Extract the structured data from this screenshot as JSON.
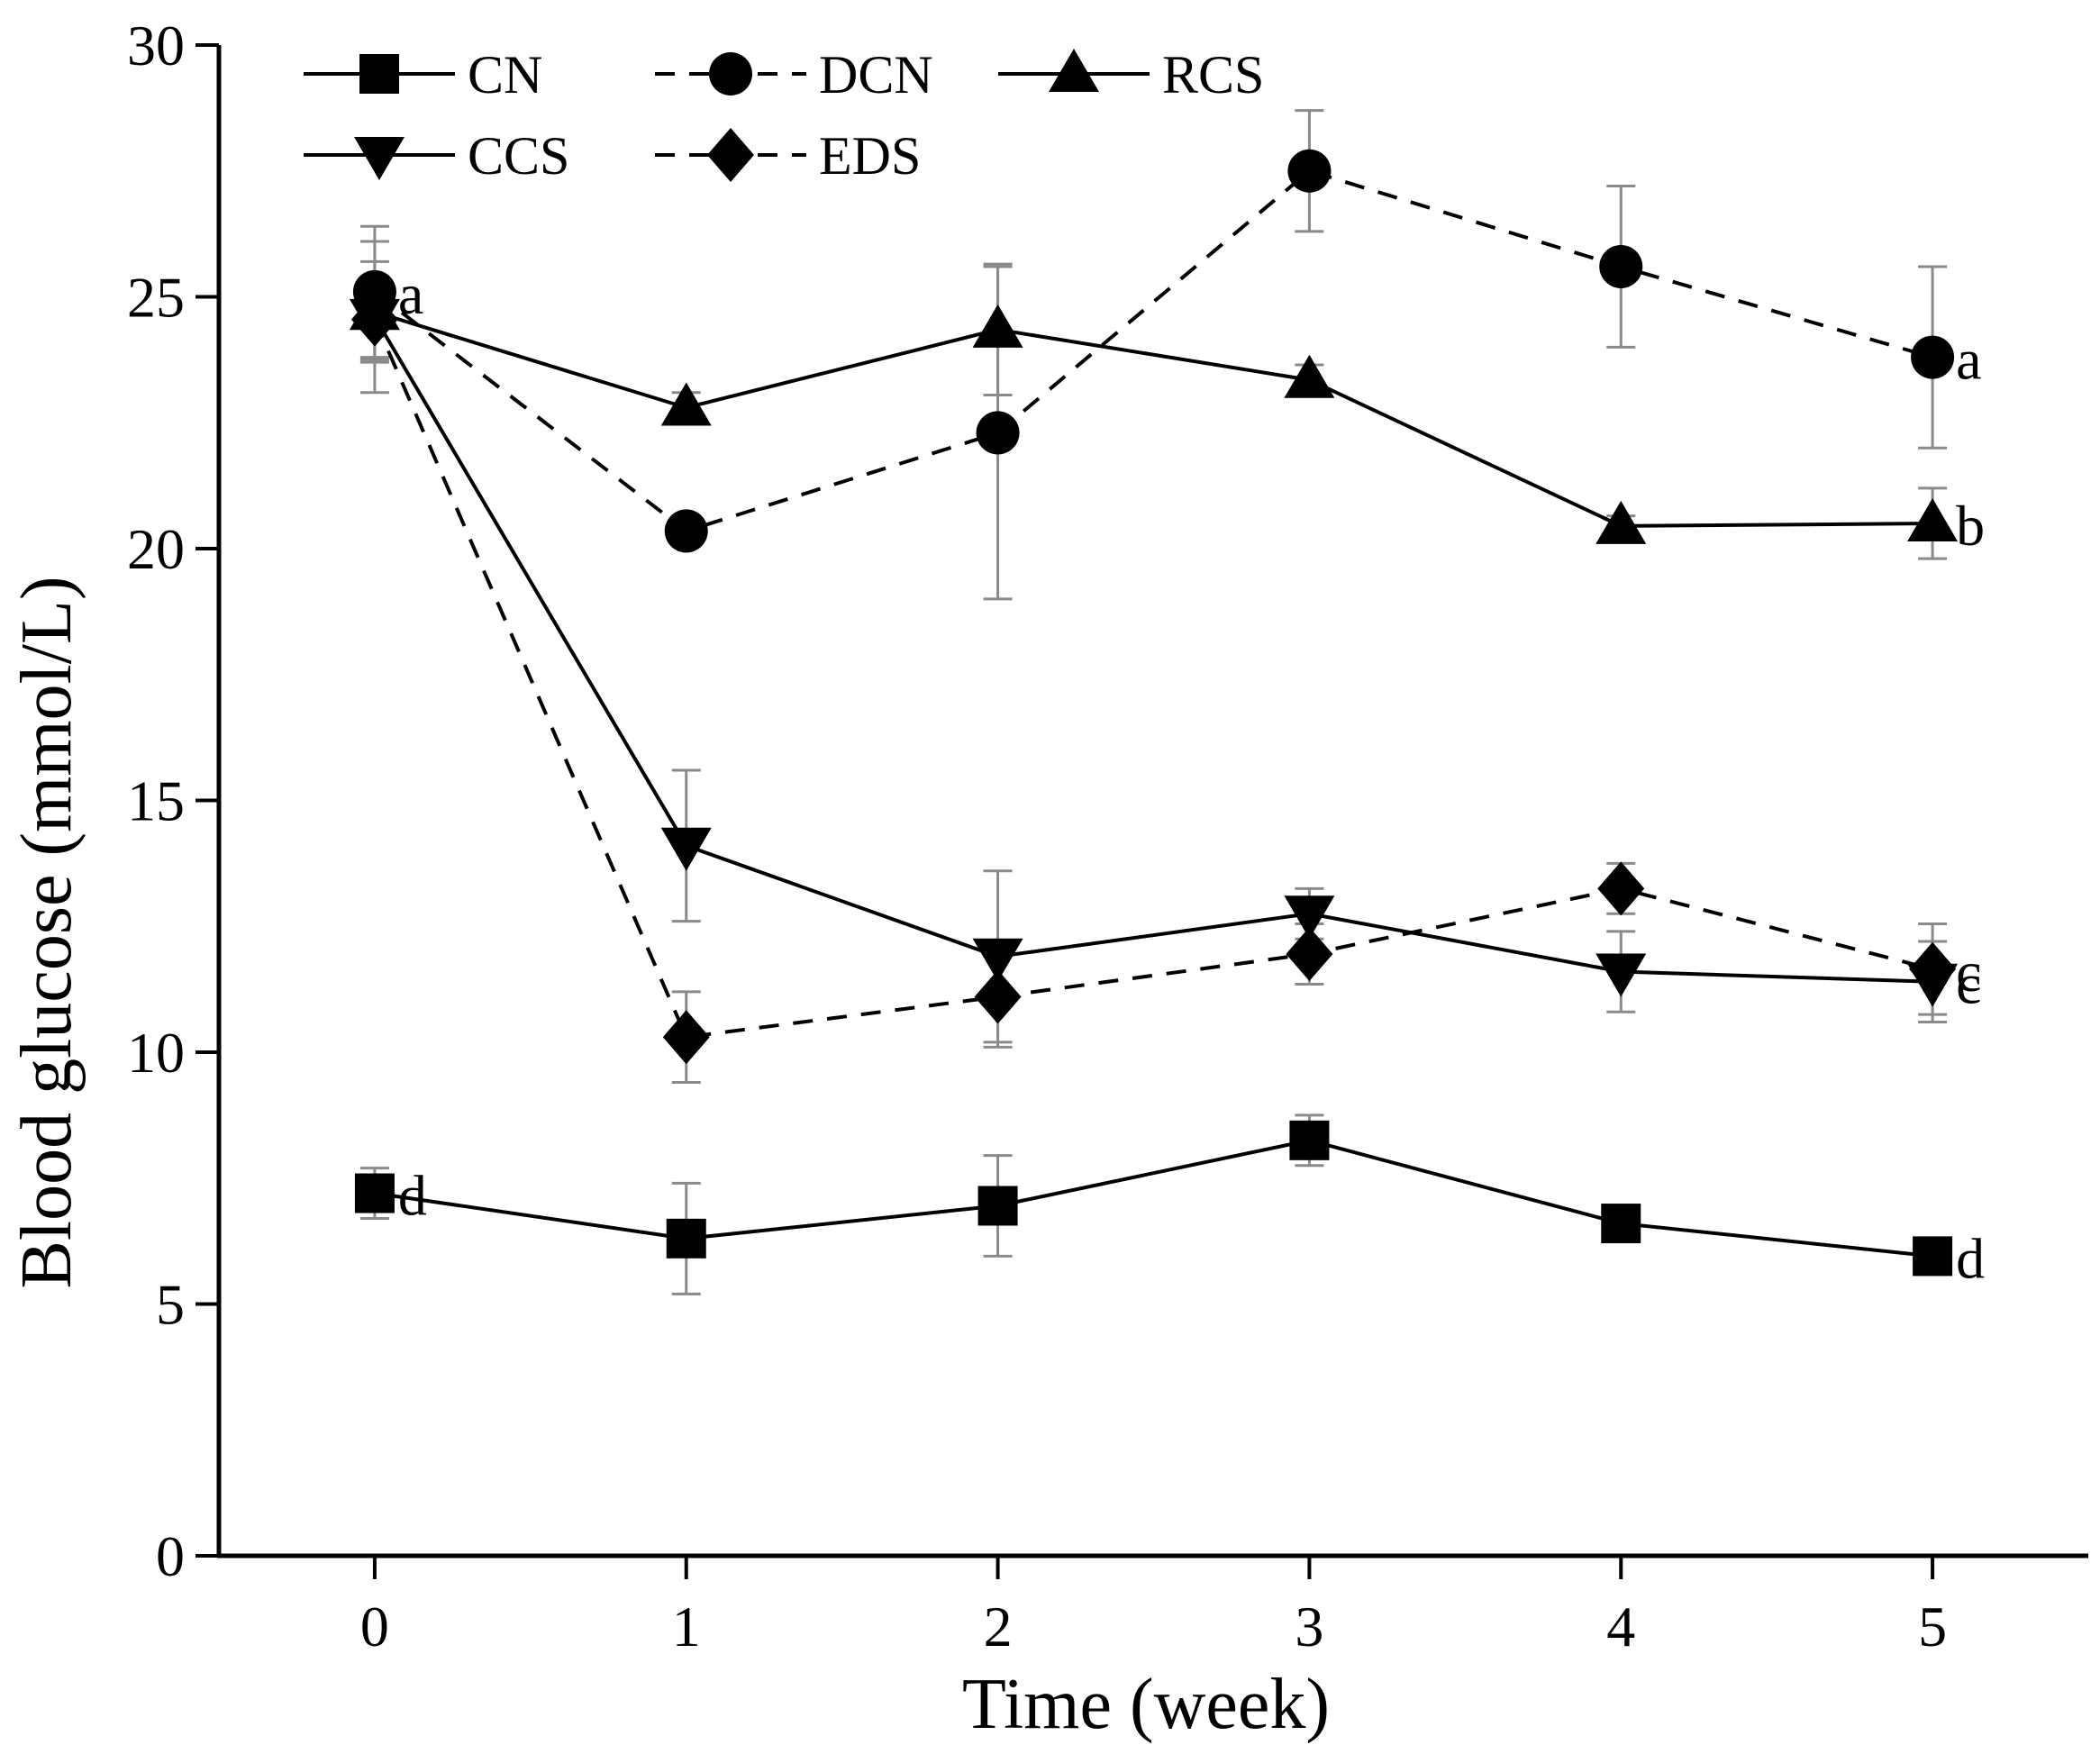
{
  "chart_data": {
    "type": "line",
    "xlabel": "Time (week)",
    "ylabel": "Blood glucose (mmol/L)",
    "x": [
      0,
      1,
      2,
      3,
      4,
      5
    ],
    "xlim": [
      -0.5,
      5.5
    ],
    "ylim": [
      0,
      30
    ],
    "xticks": [
      0,
      1,
      2,
      3,
      4,
      5
    ],
    "yticks": [
      0,
      5,
      10,
      15,
      20,
      25,
      30
    ],
    "grid": false,
    "legend_position": "top-left",
    "series": [
      {
        "name": "CN",
        "marker": "square",
        "dashed": false,
        "values": [
          7.2,
          6.3,
          6.95,
          8.25,
          6.6,
          5.95
        ],
        "errors": [
          0.5,
          1.1,
          1.0,
          0.5,
          0.2,
          0.2
        ],
        "final_label": "d",
        "start_label": "d"
      },
      {
        "name": "DCN",
        "marker": "circle",
        "dashed": true,
        "values": [
          25.1,
          20.35,
          22.3,
          27.5,
          25.6,
          23.8
        ],
        "errors": [
          1.3,
          0.3,
          3.3,
          1.2,
          1.6,
          1.8
        ],
        "final_label": "a",
        "start_label": "a"
      },
      {
        "name": "RCS",
        "marker": "triangle-up",
        "dashed": false,
        "values": [
          24.7,
          22.8,
          24.35,
          23.35,
          20.45,
          20.5
        ],
        "errors": [
          1.0,
          0.3,
          1.3,
          0.3,
          0.2,
          0.7
        ],
        "final_label": "b"
      },
      {
        "name": "CCS",
        "marker": "triangle-down",
        "dashed": false,
        "values": [
          24.6,
          14.1,
          11.9,
          12.75,
          11.6,
          11.4
        ],
        "errors": [
          1.5,
          1.5,
          1.7,
          0.5,
          0.8,
          0.8
        ],
        "final_label": "c"
      },
      {
        "name": "EDS",
        "marker": "diamond",
        "dashed": true,
        "values": [
          24.55,
          10.3,
          11.1,
          11.95,
          13.25,
          11.65
        ],
        "errors": [
          0.8,
          0.9,
          1.0,
          0.6,
          0.5,
          0.9
        ],
        "final_label": "c"
      }
    ]
  }
}
